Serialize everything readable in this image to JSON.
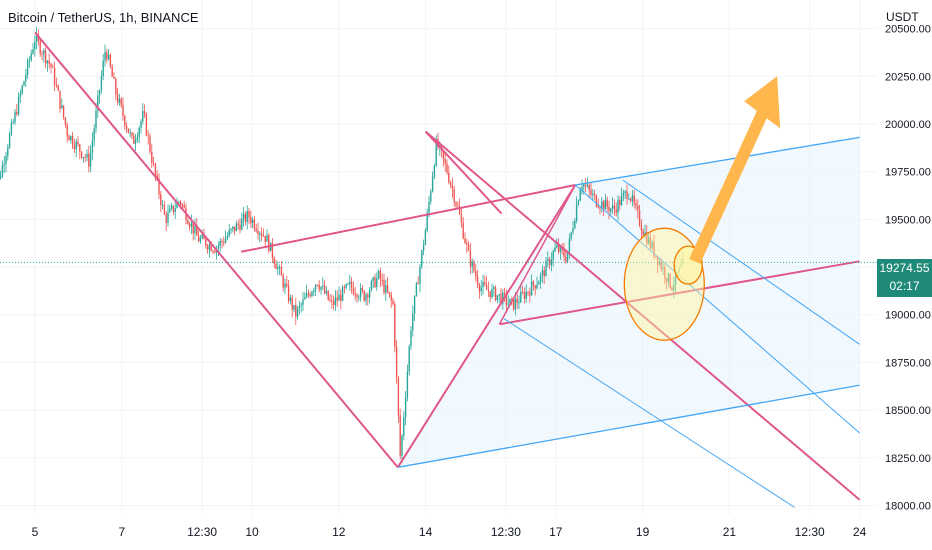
{
  "header": {
    "symbol_title": "Bitcoin / TetherUS, 1h, BINANCE",
    "currency": "USDT"
  },
  "price_tag": {
    "price": "19274.55",
    "countdown": "02:17"
  },
  "colors": {
    "up": "#26a69a",
    "down": "#ef5350",
    "pitchfork_pink": "#e0578a",
    "channel_blue": "#42a5f5",
    "arrow_orange": "#ffb74d",
    "highlight_circle": "#fff59d",
    "price_tag_bg": "#1f8a78"
  },
  "chart_data": {
    "type": "candlestick",
    "title": "Bitcoin / TetherUS, 1h, BINANCE",
    "ylabel": "USDT",
    "ylim": [
      17950,
      20650
    ],
    "y_ticks": [
      "20500.00",
      "20250.00",
      "20000.00",
      "19750.00",
      "19500.00",
      "19250.00",
      "19000.00",
      "18750.00",
      "18500.00",
      "18250.00",
      "18000.00"
    ],
    "x_ticks": [
      "5",
      "7",
      "12:30",
      "10",
      "12",
      "14",
      "12:30",
      "17",
      "19",
      "21",
      "12:30",
      "24"
    ],
    "last_price": 19274.55,
    "price_path": [
      {
        "x": "4 00:00",
        "y": 19550
      },
      {
        "x": "4 09:00",
        "y": 19900
      },
      {
        "x": "5 00:00",
        "y": 20450
      },
      {
        "x": "5 09:00",
        "y": 20300
      },
      {
        "x": "5 18:00",
        "y": 19950
      },
      {
        "x": "6 06:00",
        "y": 19800
      },
      {
        "x": "6 15:00",
        "y": 20400
      },
      {
        "x": "6 21:00",
        "y": 20150
      },
      {
        "x": "7 06:00",
        "y": 19900
      },
      {
        "x": "7 12:00",
        "y": 20050
      },
      {
        "x": "7 18:00",
        "y": 19750
      },
      {
        "x": "8 00:00",
        "y": 19500
      },
      {
        "x": "8 08:00",
        "y": 19600
      },
      {
        "x": "8 18:00",
        "y": 19400
      },
      {
        "x": "9 04:00",
        "y": 19350
      },
      {
        "x": "9 14:00",
        "y": 19450
      },
      {
        "x": "9 22:00",
        "y": 19520
      },
      {
        "x": "10 08:00",
        "y": 19400
      },
      {
        "x": "10 16:00",
        "y": 19200
      },
      {
        "x": "11 00:00",
        "y": 19000
      },
      {
        "x": "11 12:00",
        "y": 19180
      },
      {
        "x": "11 20:00",
        "y": 19050
      },
      {
        "x": "12 06:00",
        "y": 19150
      },
      {
        "x": "12 14:00",
        "y": 19100
      },
      {
        "x": "12 22:00",
        "y": 19200
      },
      {
        "x": "13 06:00",
        "y": 19050
      },
      {
        "x": "13 10:00",
        "y": 18250
      },
      {
        "x": "13 16:00",
        "y": 18950
      },
      {
        "x": "14 00:00",
        "y": 19450
      },
      {
        "x": "14 06:00",
        "y": 19900
      },
      {
        "x": "14 12:00",
        "y": 19750
      },
      {
        "x": "14 18:00",
        "y": 19550
      },
      {
        "x": "15 00:00",
        "y": 19300
      },
      {
        "x": "15 06:00",
        "y": 19150
      },
      {
        "x": "15 16:00",
        "y": 19100
      },
      {
        "x": "16 00:00",
        "y": 19050
      },
      {
        "x": "16 08:00",
        "y": 19120
      },
      {
        "x": "16 16:00",
        "y": 19200
      },
      {
        "x": "17 00:00",
        "y": 19350
      },
      {
        "x": "17 06:00",
        "y": 19300
      },
      {
        "x": "17 14:00",
        "y": 19700
      },
      {
        "x": "17 22:00",
        "y": 19600
      },
      {
        "x": "18 08:00",
        "y": 19550
      },
      {
        "x": "18 16:00",
        "y": 19650
      },
      {
        "x": "19 00:00",
        "y": 19450
      },
      {
        "x": "19 08:00",
        "y": 19300
      },
      {
        "x": "19 16:00",
        "y": 19150
      },
      {
        "x": "19 23:00",
        "y": 19274.55
      }
    ],
    "annotations": [
      {
        "type": "trend_line",
        "color": "pink",
        "points": [
          {
            "x": "5 00:00",
            "y": 20480
          },
          {
            "x": "13 09:00",
            "y": 18200
          },
          {
            "x": "17 10:00",
            "y": 19680
          }
        ]
      },
      {
        "type": "trend_line",
        "color": "pink",
        "points": [
          {
            "x": "9 18:00",
            "y": 19330
          },
          {
            "x": "17 10:00",
            "y": 19680
          }
        ]
      },
      {
        "type": "pitchfork",
        "color": "pink",
        "points": [
          {
            "x": "13 12:00",
            "y": 19960
          },
          {
            "x": "23 16:00",
            "y": 18030
          }
        ]
      },
      {
        "type": "pitchfork_median",
        "color": "pink",
        "points": [
          {
            "x": "16 00:00",
            "y": 18950
          },
          {
            "x": "24 00:00",
            "y": 19280
          }
        ]
      },
      {
        "type": "parallel_channel",
        "color": "blue",
        "points": [
          {
            "x": "13 09:00",
            "y": 18200
          },
          {
            "x": "24 00:00",
            "y": 18630
          }
        ]
      },
      {
        "type": "parallel_channel",
        "color": "blue",
        "points": [
          {
            "x": "17 12:00",
            "y": 19680
          },
          {
            "x": "24 00:00",
            "y": 19930
          }
        ]
      },
      {
        "type": "arrow",
        "color": "orange",
        "direction": "up-right"
      },
      {
        "type": "ellipse_highlight",
        "color": "yellow"
      }
    ]
  }
}
